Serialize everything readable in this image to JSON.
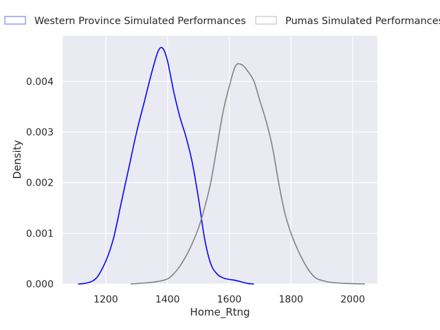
{
  "chart_data": {
    "type": "line",
    "xlabel": "Home_Rtng",
    "ylabel": "Density",
    "xlim": [
      1060,
      2080
    ],
    "ylim": [
      0,
      0.0049
    ],
    "x_ticks": [
      1200,
      1400,
      1600,
      1800,
      2000
    ],
    "y_ticks": [
      0.0,
      0.001,
      0.002,
      0.003,
      0.004
    ],
    "x_tick_labels": [
      "1200",
      "1400",
      "1600",
      "1800",
      "2000"
    ],
    "y_tick_labels": [
      "0.000",
      "0.001",
      "0.002",
      "0.003",
      "0.004"
    ],
    "grid": true,
    "legend_position": "top",
    "background": "#eaeaf2",
    "series": [
      {
        "name": "Western Province Simulated Performances",
        "color": "#0000ff",
        "points": [
          [
            1110,
            0.0
          ],
          [
            1140,
            2e-05
          ],
          [
            1170,
            0.00012
          ],
          [
            1200,
            0.00045
          ],
          [
            1225,
            0.0009
          ],
          [
            1250,
            0.0016
          ],
          [
            1275,
            0.0023
          ],
          [
            1300,
            0.003
          ],
          [
            1325,
            0.0036
          ],
          [
            1350,
            0.0042
          ],
          [
            1370,
            0.0046
          ],
          [
            1385,
            0.00465
          ],
          [
            1400,
            0.0044
          ],
          [
            1420,
            0.0038
          ],
          [
            1440,
            0.0033
          ],
          [
            1460,
            0.0029
          ],
          [
            1480,
            0.0024
          ],
          [
            1500,
            0.0017
          ],
          [
            1520,
            0.0009
          ],
          [
            1540,
            0.0004
          ],
          [
            1560,
            0.0002
          ],
          [
            1580,
            0.00012
          ],
          [
            1600,
            9e-05
          ],
          [
            1620,
            7e-05
          ],
          [
            1640,
            4e-05
          ],
          [
            1660,
            1e-05
          ],
          [
            1680,
            0.0
          ]
        ]
      },
      {
        "name": "Pumas Simulated Performances",
        "color": "#808080",
        "points": [
          [
            1280,
            0.0
          ],
          [
            1330,
            2e-05
          ],
          [
            1370,
            5e-05
          ],
          [
            1400,
            0.0001
          ],
          [
            1420,
            0.0002
          ],
          [
            1440,
            0.00035
          ],
          [
            1460,
            0.00055
          ],
          [
            1480,
            0.0008
          ],
          [
            1500,
            0.0011
          ],
          [
            1520,
            0.0015
          ],
          [
            1540,
            0.002
          ],
          [
            1560,
            0.0027
          ],
          [
            1580,
            0.0034
          ],
          [
            1600,
            0.0039
          ],
          [
            1620,
            0.0043
          ],
          [
            1640,
            0.00433
          ],
          [
            1660,
            0.0042
          ],
          [
            1680,
            0.004
          ],
          [
            1700,
            0.0036
          ],
          [
            1720,
            0.0032
          ],
          [
            1740,
            0.0027
          ],
          [
            1760,
            0.002
          ],
          [
            1780,
            0.0014
          ],
          [
            1800,
            0.001
          ],
          [
            1820,
            0.0007
          ],
          [
            1840,
            0.00045
          ],
          [
            1860,
            0.00025
          ],
          [
            1880,
            0.00012
          ],
          [
            1900,
            7e-05
          ],
          [
            1920,
            4e-05
          ],
          [
            1950,
            2e-05
          ],
          [
            1980,
            1e-05
          ],
          [
            2040,
            0.0
          ]
        ]
      }
    ]
  }
}
